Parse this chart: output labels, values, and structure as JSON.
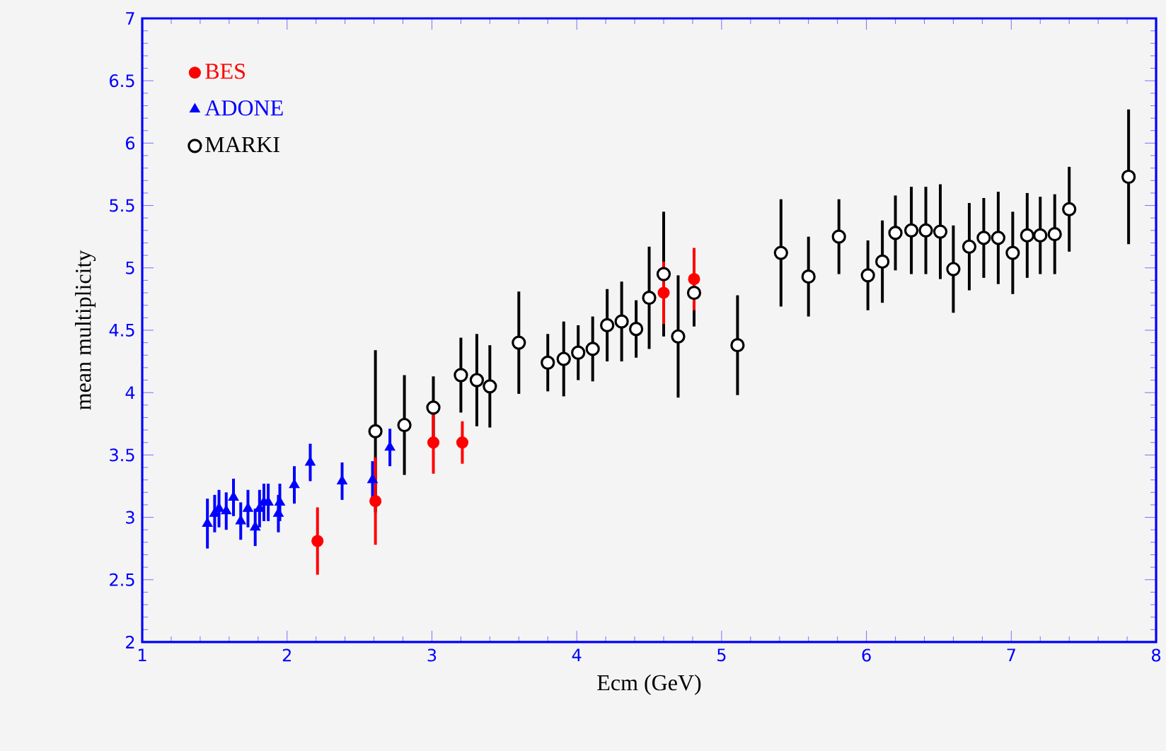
{
  "chart_data": {
    "type": "scatter",
    "xlabel": "Ecm (GeV)",
    "ylabel": "mean multiplicity",
    "xlim": [
      1,
      8
    ],
    "ylim": [
      2,
      7
    ],
    "xticks": [
      1,
      2,
      3,
      4,
      5,
      6,
      7,
      8
    ],
    "yticks": [
      2,
      2.5,
      3,
      3.5,
      4,
      4.5,
      5,
      5.5,
      6,
      6.5,
      7
    ],
    "grid": false,
    "legend": "top left",
    "series": [
      {
        "name": "BES",
        "color": "#ff0000",
        "marker": "circle",
        "x": [
          2.21,
          2.61,
          3.01,
          3.21,
          4.6,
          4.81
        ],
        "values": [
          2.81,
          3.13,
          3.6,
          3.6,
          4.8,
          4.91
        ],
        "errors": [
          0.27,
          0.35,
          0.25,
          0.17,
          0.25,
          0.25
        ]
      },
      {
        "name": "ADONE",
        "color": "#0000ff",
        "marker": "triangle",
        "x": [
          1.45,
          1.5,
          1.53,
          1.58,
          1.63,
          1.68,
          1.73,
          1.78,
          1.81,
          1.84,
          1.87,
          1.94,
          1.95,
          2.05,
          2.16,
          2.38,
          2.59,
          2.71
        ],
        "values": [
          2.95,
          3.03,
          3.07,
          3.05,
          3.16,
          2.97,
          3.07,
          2.92,
          3.07,
          3.12,
          3.12,
          3.03,
          3.12,
          3.26,
          3.44,
          3.29,
          3.3,
          3.56
        ],
        "errors": [
          0.2,
          0.15,
          0.15,
          0.15,
          0.15,
          0.15,
          0.15,
          0.15,
          0.15,
          0.15,
          0.15,
          0.15,
          0.15,
          0.15,
          0.15,
          0.15,
          0.15,
          0.15
        ]
      },
      {
        "name": "MARKI",
        "color": "#000000",
        "marker": "circle",
        "x": [
          2.61,
          2.81,
          3.01,
          3.2,
          3.31,
          3.4,
          3.6,
          3.8,
          3.91,
          4.01,
          4.11,
          4.21,
          4.31,
          4.41,
          4.5,
          4.6,
          4.7,
          4.81,
          5.11,
          5.41,
          5.6,
          5.81,
          6.01,
          6.11,
          6.2,
          6.31,
          6.41,
          6.51,
          6.6,
          6.71,
          6.81,
          6.91,
          7.01,
          7.11,
          7.2,
          7.3,
          7.4,
          7.81
        ],
        "values": [
          3.69,
          3.74,
          3.88,
          4.14,
          4.1,
          4.05,
          4.4,
          4.24,
          4.27,
          4.32,
          4.35,
          4.54,
          4.57,
          4.51,
          4.76,
          4.95,
          4.45,
          4.8,
          4.38,
          5.12,
          4.93,
          5.25,
          4.94,
          5.05,
          5.28,
          5.3,
          5.3,
          5.29,
          4.99,
          5.17,
          5.24,
          5.24,
          5.12,
          5.26,
          5.26,
          5.27,
          5.47,
          5.73
        ],
        "errors": [
          0.65,
          0.4,
          0.25,
          0.3,
          0.37,
          0.33,
          0.41,
          0.23,
          0.3,
          0.22,
          0.26,
          0.29,
          0.32,
          0.23,
          0.41,
          0.5,
          0.49,
          0.27,
          0.4,
          0.43,
          0.32,
          0.3,
          0.28,
          0.33,
          0.3,
          0.35,
          0.35,
          0.38,
          0.35,
          0.35,
          0.32,
          0.37,
          0.33,
          0.34,
          0.31,
          0.32,
          0.34,
          0.54
        ]
      }
    ]
  }
}
